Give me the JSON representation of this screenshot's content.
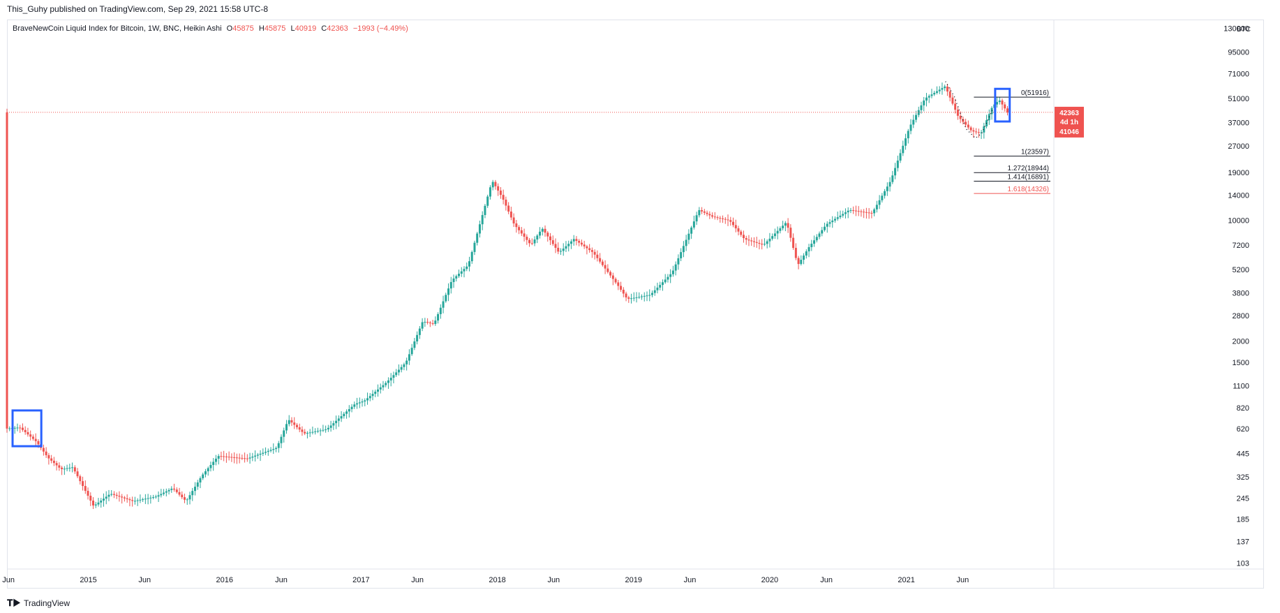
{
  "header": {
    "publisher": "This_Guhy published on TradingView.com, Sep 29, 2021 15:58 UTC-8"
  },
  "legend": {
    "title": "BraveNewCoin Liquid Index for Bitcoin, 1W, BNC, Heikin Ashi",
    "o_label": "O",
    "o": "45875",
    "h_label": "H",
    "h": "45875",
    "l_label": "L",
    "l": "40919",
    "c_label": "C",
    "c": "42363",
    "change": "−1993 (−4.49%)"
  },
  "footer": {
    "brand": "TradingView"
  },
  "colors": {
    "up": "#26a69a",
    "down": "#ef5350",
    "highlight": "#2962ff",
    "grid_border": "#e0e3eb",
    "text": "#131722"
  },
  "price_badges": {
    "last": "42363",
    "countdown": "4d 1h",
    "low": "41046"
  },
  "chart_data": {
    "type": "candlestick",
    "symbol": "BraveNewCoin Liquid Index for Bitcoin",
    "interval": "1W",
    "style": "Heikin Ashi",
    "y_scale": "log",
    "currency": "BTC",
    "y_ticks": [
      130000,
      95000,
      71000,
      51000,
      37000,
      27000,
      19000,
      14000,
      10000,
      7200,
      5200,
      3800,
      2800,
      2000,
      1500,
      1100,
      820,
      620,
      445,
      325,
      245,
      185,
      137,
      103
    ],
    "y_tick_labels": [
      "130000",
      "95000",
      "71000",
      "51000",
      "37000",
      "27000",
      "19000",
      "14000",
      "10000",
      "7200",
      "5200",
      "3800",
      "2800",
      "2000",
      "1500",
      "1100",
      "820",
      "620",
      "445",
      "325",
      "245",
      "185",
      "137",
      "103"
    ],
    "x_ticks": [
      {
        "label": "Jun",
        "date": "2014-06-01"
      },
      {
        "label": "2015",
        "date": "2015-01-01"
      },
      {
        "label": "Jun",
        "date": "2015-06-01"
      },
      {
        "label": "2016",
        "date": "2016-01-01"
      },
      {
        "label": "Jun",
        "date": "2016-06-01"
      },
      {
        "label": "2017",
        "date": "2017-01-01"
      },
      {
        "label": "Jun",
        "date": "2017-06-01"
      },
      {
        "label": "2018",
        "date": "2018-01-01"
      },
      {
        "label": "Jun",
        "date": "2018-06-01"
      },
      {
        "label": "2019",
        "date": "2019-01-01"
      },
      {
        "label": "Jun",
        "date": "2019-06-01"
      },
      {
        "label": "2020",
        "date": "2020-01-01"
      },
      {
        "label": "Jun",
        "date": "2020-06-01"
      },
      {
        "label": "2021",
        "date": "2021-01-01"
      },
      {
        "label": "Jun",
        "date": "2021-06-01"
      }
    ],
    "x_range": [
      "2014-05-28",
      "2022-01-22"
    ],
    "y_range": [
      95,
      145000
    ],
    "price_path": [
      {
        "date": "2014-05-28",
        "price": 620
      },
      {
        "date": "2014-07-01",
        "price": 630
      },
      {
        "date": "2014-08-15",
        "price": 520
      },
      {
        "date": "2014-09-15",
        "price": 420
      },
      {
        "date": "2014-10-20",
        "price": 360
      },
      {
        "date": "2014-11-20",
        "price": 370
      },
      {
        "date": "2015-01-15",
        "price": 220
      },
      {
        "date": "2015-03-01",
        "price": 260
      },
      {
        "date": "2015-05-01",
        "price": 235
      },
      {
        "date": "2015-07-01",
        "price": 250
      },
      {
        "date": "2015-08-15",
        "price": 280
      },
      {
        "date": "2015-09-20",
        "price": 235
      },
      {
        "date": "2015-11-01",
        "price": 330
      },
      {
        "date": "2015-12-15",
        "price": 430
      },
      {
        "date": "2016-03-01",
        "price": 415
      },
      {
        "date": "2016-05-20",
        "price": 480
      },
      {
        "date": "2016-06-20",
        "price": 700
      },
      {
        "date": "2016-08-01",
        "price": 580
      },
      {
        "date": "2016-10-01",
        "price": 615
      },
      {
        "date": "2016-12-15",
        "price": 860
      },
      {
        "date": "2017-01-10",
        "price": 900
      },
      {
        "date": "2017-03-10",
        "price": 1150
      },
      {
        "date": "2017-05-01",
        "price": 1500
      },
      {
        "date": "2017-06-15",
        "price": 2600
      },
      {
        "date": "2017-07-15",
        "price": 2500
      },
      {
        "date": "2017-09-01",
        "price": 4500
      },
      {
        "date": "2017-10-15",
        "price": 5500
      },
      {
        "date": "2017-12-18",
        "price": 17000
      },
      {
        "date": "2018-01-15",
        "price": 13500
      },
      {
        "date": "2018-02-15",
        "price": 9500
      },
      {
        "date": "2018-04-01",
        "price": 7200
      },
      {
        "date": "2018-05-01",
        "price": 9000
      },
      {
        "date": "2018-06-15",
        "price": 6500
      },
      {
        "date": "2018-07-25",
        "price": 7800
      },
      {
        "date": "2018-09-15",
        "price": 6500
      },
      {
        "date": "2018-11-20",
        "price": 4200
      },
      {
        "date": "2018-12-15",
        "price": 3500
      },
      {
        "date": "2019-02-15",
        "price": 3700
      },
      {
        "date": "2019-04-15",
        "price": 5000
      },
      {
        "date": "2019-06-25",
        "price": 11500
      },
      {
        "date": "2019-08-01",
        "price": 10500
      },
      {
        "date": "2019-09-15",
        "price": 10000
      },
      {
        "date": "2019-10-25",
        "price": 7800
      },
      {
        "date": "2019-12-15",
        "price": 7200
      },
      {
        "date": "2020-02-15",
        "price": 9800
      },
      {
        "date": "2020-03-16",
        "price": 5500
      },
      {
        "date": "2020-04-15",
        "price": 7000
      },
      {
        "date": "2020-06-01",
        "price": 9500
      },
      {
        "date": "2020-08-01",
        "price": 11500
      },
      {
        "date": "2020-10-01",
        "price": 11000
      },
      {
        "date": "2020-11-20",
        "price": 17000
      },
      {
        "date": "2021-01-10",
        "price": 35000
      },
      {
        "date": "2021-02-20",
        "price": 51000
      },
      {
        "date": "2021-04-15",
        "price": 60000
      },
      {
        "date": "2021-05-20",
        "price": 40000
      },
      {
        "date": "2021-06-25",
        "price": 33000
      },
      {
        "date": "2021-07-20",
        "price": 32000
      },
      {
        "date": "2021-08-20",
        "price": 46000
      },
      {
        "date": "2021-09-07",
        "price": 50000
      },
      {
        "date": "2021-09-29",
        "price": 42363
      }
    ],
    "last_price": 42363,
    "fib_levels": [
      {
        "label": "0(51916)",
        "value": 51916,
        "color": "#131722"
      },
      {
        "label": "1(23597)",
        "value": 23597,
        "color": "#131722"
      },
      {
        "label": "1.272(18944)",
        "value": 18944,
        "color": "#131722"
      },
      {
        "label": "1.414(16891)",
        "value": 16891,
        "color": "#131722"
      },
      {
        "label": "1.618(14326)",
        "value": 14326,
        "color": "#ef5350"
      }
    ],
    "fib_start_date": "2021-07-01",
    "highlight_boxes": [
      {
        "from_date": "2014-06-12",
        "to_date": "2014-08-28",
        "high_price": 790,
        "low_price": 490
      },
      {
        "from_date": "2021-08-27",
        "to_date": "2021-10-05",
        "high_price": 58000,
        "low_price": 37500
      }
    ],
    "dotted_path": [
      {
        "date": "2021-04-16",
        "price": 64000
      },
      {
        "date": "2021-05-10",
        "price": 52000
      },
      {
        "date": "2021-06-10",
        "price": 34000
      },
      {
        "date": "2021-07-05",
        "price": 30000
      },
      {
        "date": "2021-07-22",
        "price": 32000
      },
      {
        "date": "2021-08-20",
        "price": 44000
      }
    ]
  }
}
